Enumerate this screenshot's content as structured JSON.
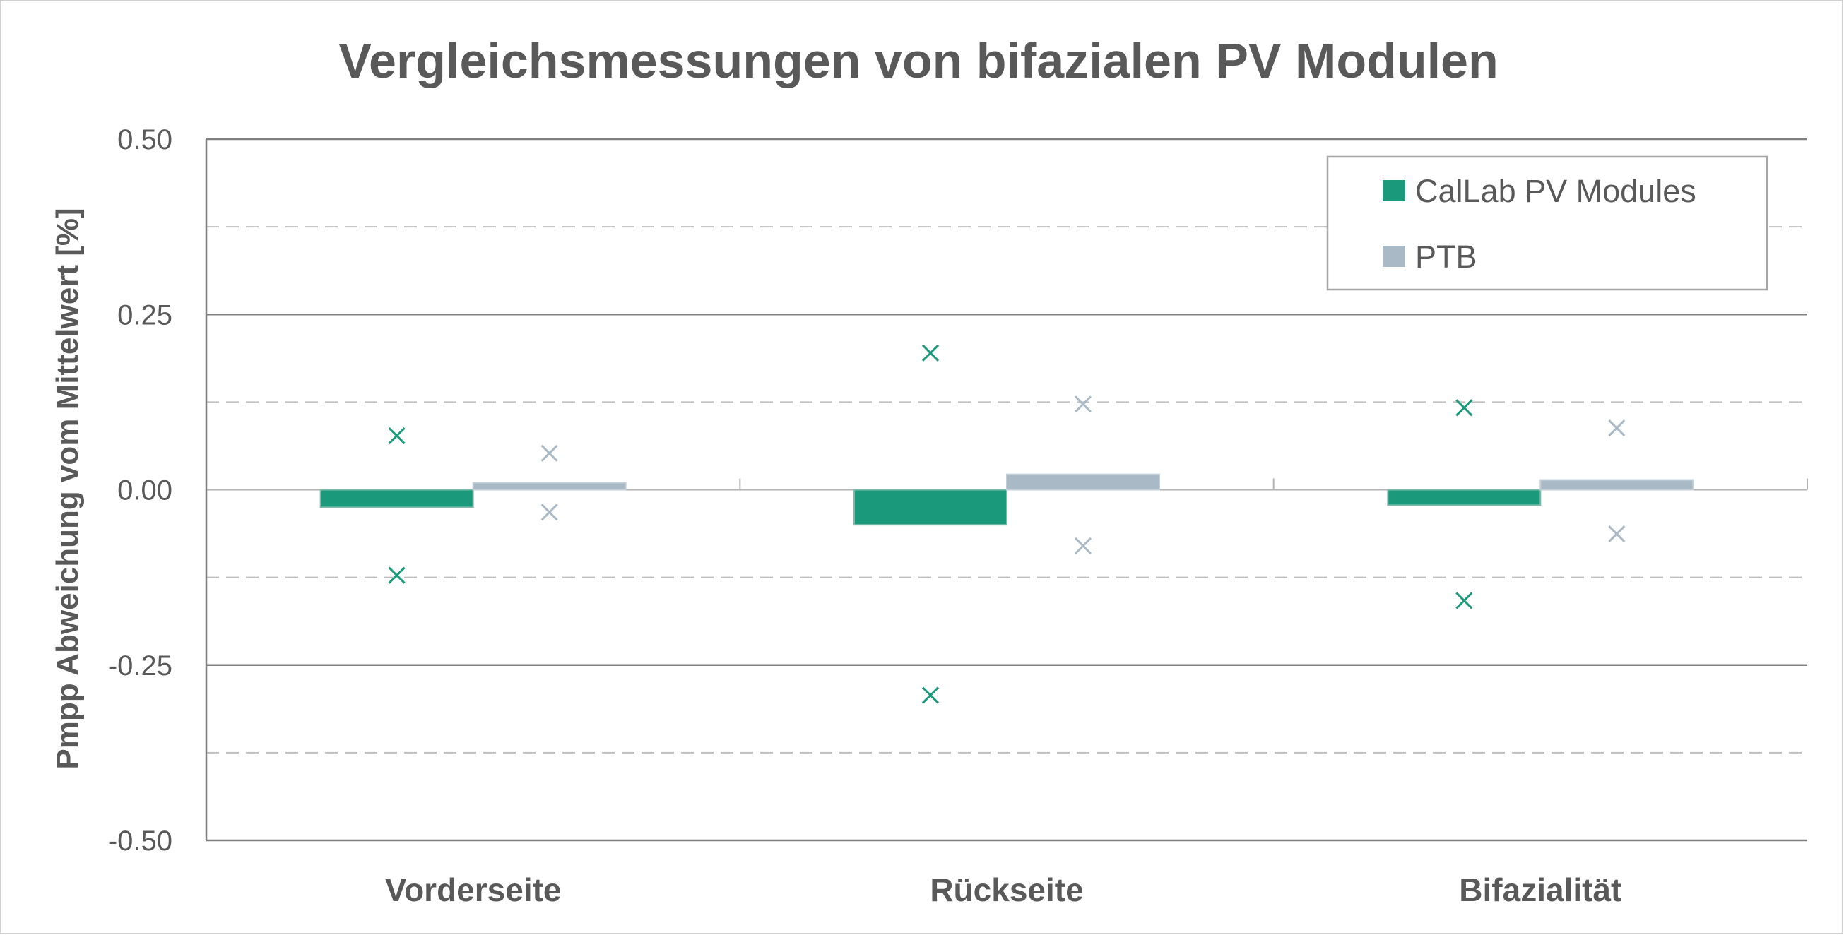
{
  "chart_data": {
    "type": "bar",
    "title": "Vergleichsmessungen von bifazialen PV Modulen",
    "ylabel": "Pmpp Abweichung vom Mittelwert [%]",
    "xlabel": "",
    "categories": [
      "Vorderseite",
      "Rückseite",
      "Bifazialität"
    ],
    "ylim": [
      -0.5,
      0.5
    ],
    "yticks": [
      0.5,
      0.25,
      0.0,
      -0.25,
      -0.5
    ],
    "ytick_labels": [
      "0.50",
      "0.25",
      "0.00",
      "-0.25",
      "-0.50"
    ],
    "minor_gridlines": [
      0.375,
      0.125,
      -0.125,
      -0.375
    ],
    "legend_position": "top-right",
    "series": [
      {
        "name": "CalLab PV Modules",
        "color": "#1a9a7b",
        "values": [
          -0.025,
          -0.05,
          -0.022
        ],
        "upper": [
          0.077,
          0.195,
          0.117
        ],
        "lower": [
          -0.122,
          -0.293,
          -0.158
        ]
      },
      {
        "name": "PTB",
        "color": "#a9b9c5",
        "values": [
          0.01,
          0.022,
          0.014
        ],
        "upper": [
          0.052,
          0.122,
          0.088
        ],
        "lower": [
          -0.032,
          -0.08,
          -0.063
        ]
      }
    ]
  }
}
